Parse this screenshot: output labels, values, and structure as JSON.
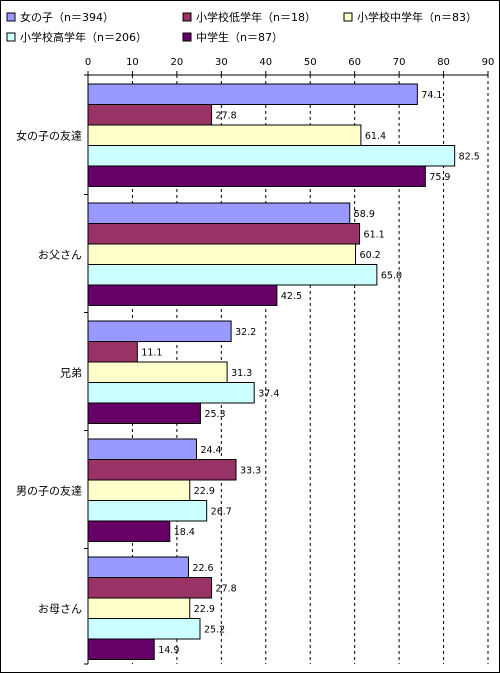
{
  "chart_data": {
    "type": "bar",
    "orientation": "horizontal",
    "categories": [
      "女の子の友達",
      "お父さん",
      "兄弟",
      "男の子の友達",
      "お母さん"
    ],
    "series": [
      {
        "name": "女の子（n＝394）",
        "color": "#9999ff",
        "values": [
          74.1,
          58.9,
          32.2,
          24.4,
          22.6
        ]
      },
      {
        "name": "小学校低学年（n＝18）",
        "color": "#993366",
        "values": [
          27.8,
          61.1,
          11.1,
          33.3,
          27.8
        ]
      },
      {
        "name": "小学校中学年（n＝83）",
        "color": "#ffffcc",
        "values": [
          61.4,
          60.2,
          31.3,
          22.9,
          22.9
        ]
      },
      {
        "name": "小学校高学年（n＝206）",
        "color": "#ccffff",
        "values": [
          82.5,
          65.0,
          37.4,
          26.7,
          25.2
        ]
      },
      {
        "name": "中学生（n＝87）",
        "color": "#660066",
        "values": [
          75.9,
          42.5,
          25.3,
          18.4,
          14.9
        ]
      }
    ],
    "xlim": [
      0,
      90
    ],
    "xticks": [
      0,
      10,
      20,
      30,
      40,
      50,
      60,
      70,
      80,
      90
    ],
    "grid": "vertical dashed",
    "legend_position": "top"
  }
}
